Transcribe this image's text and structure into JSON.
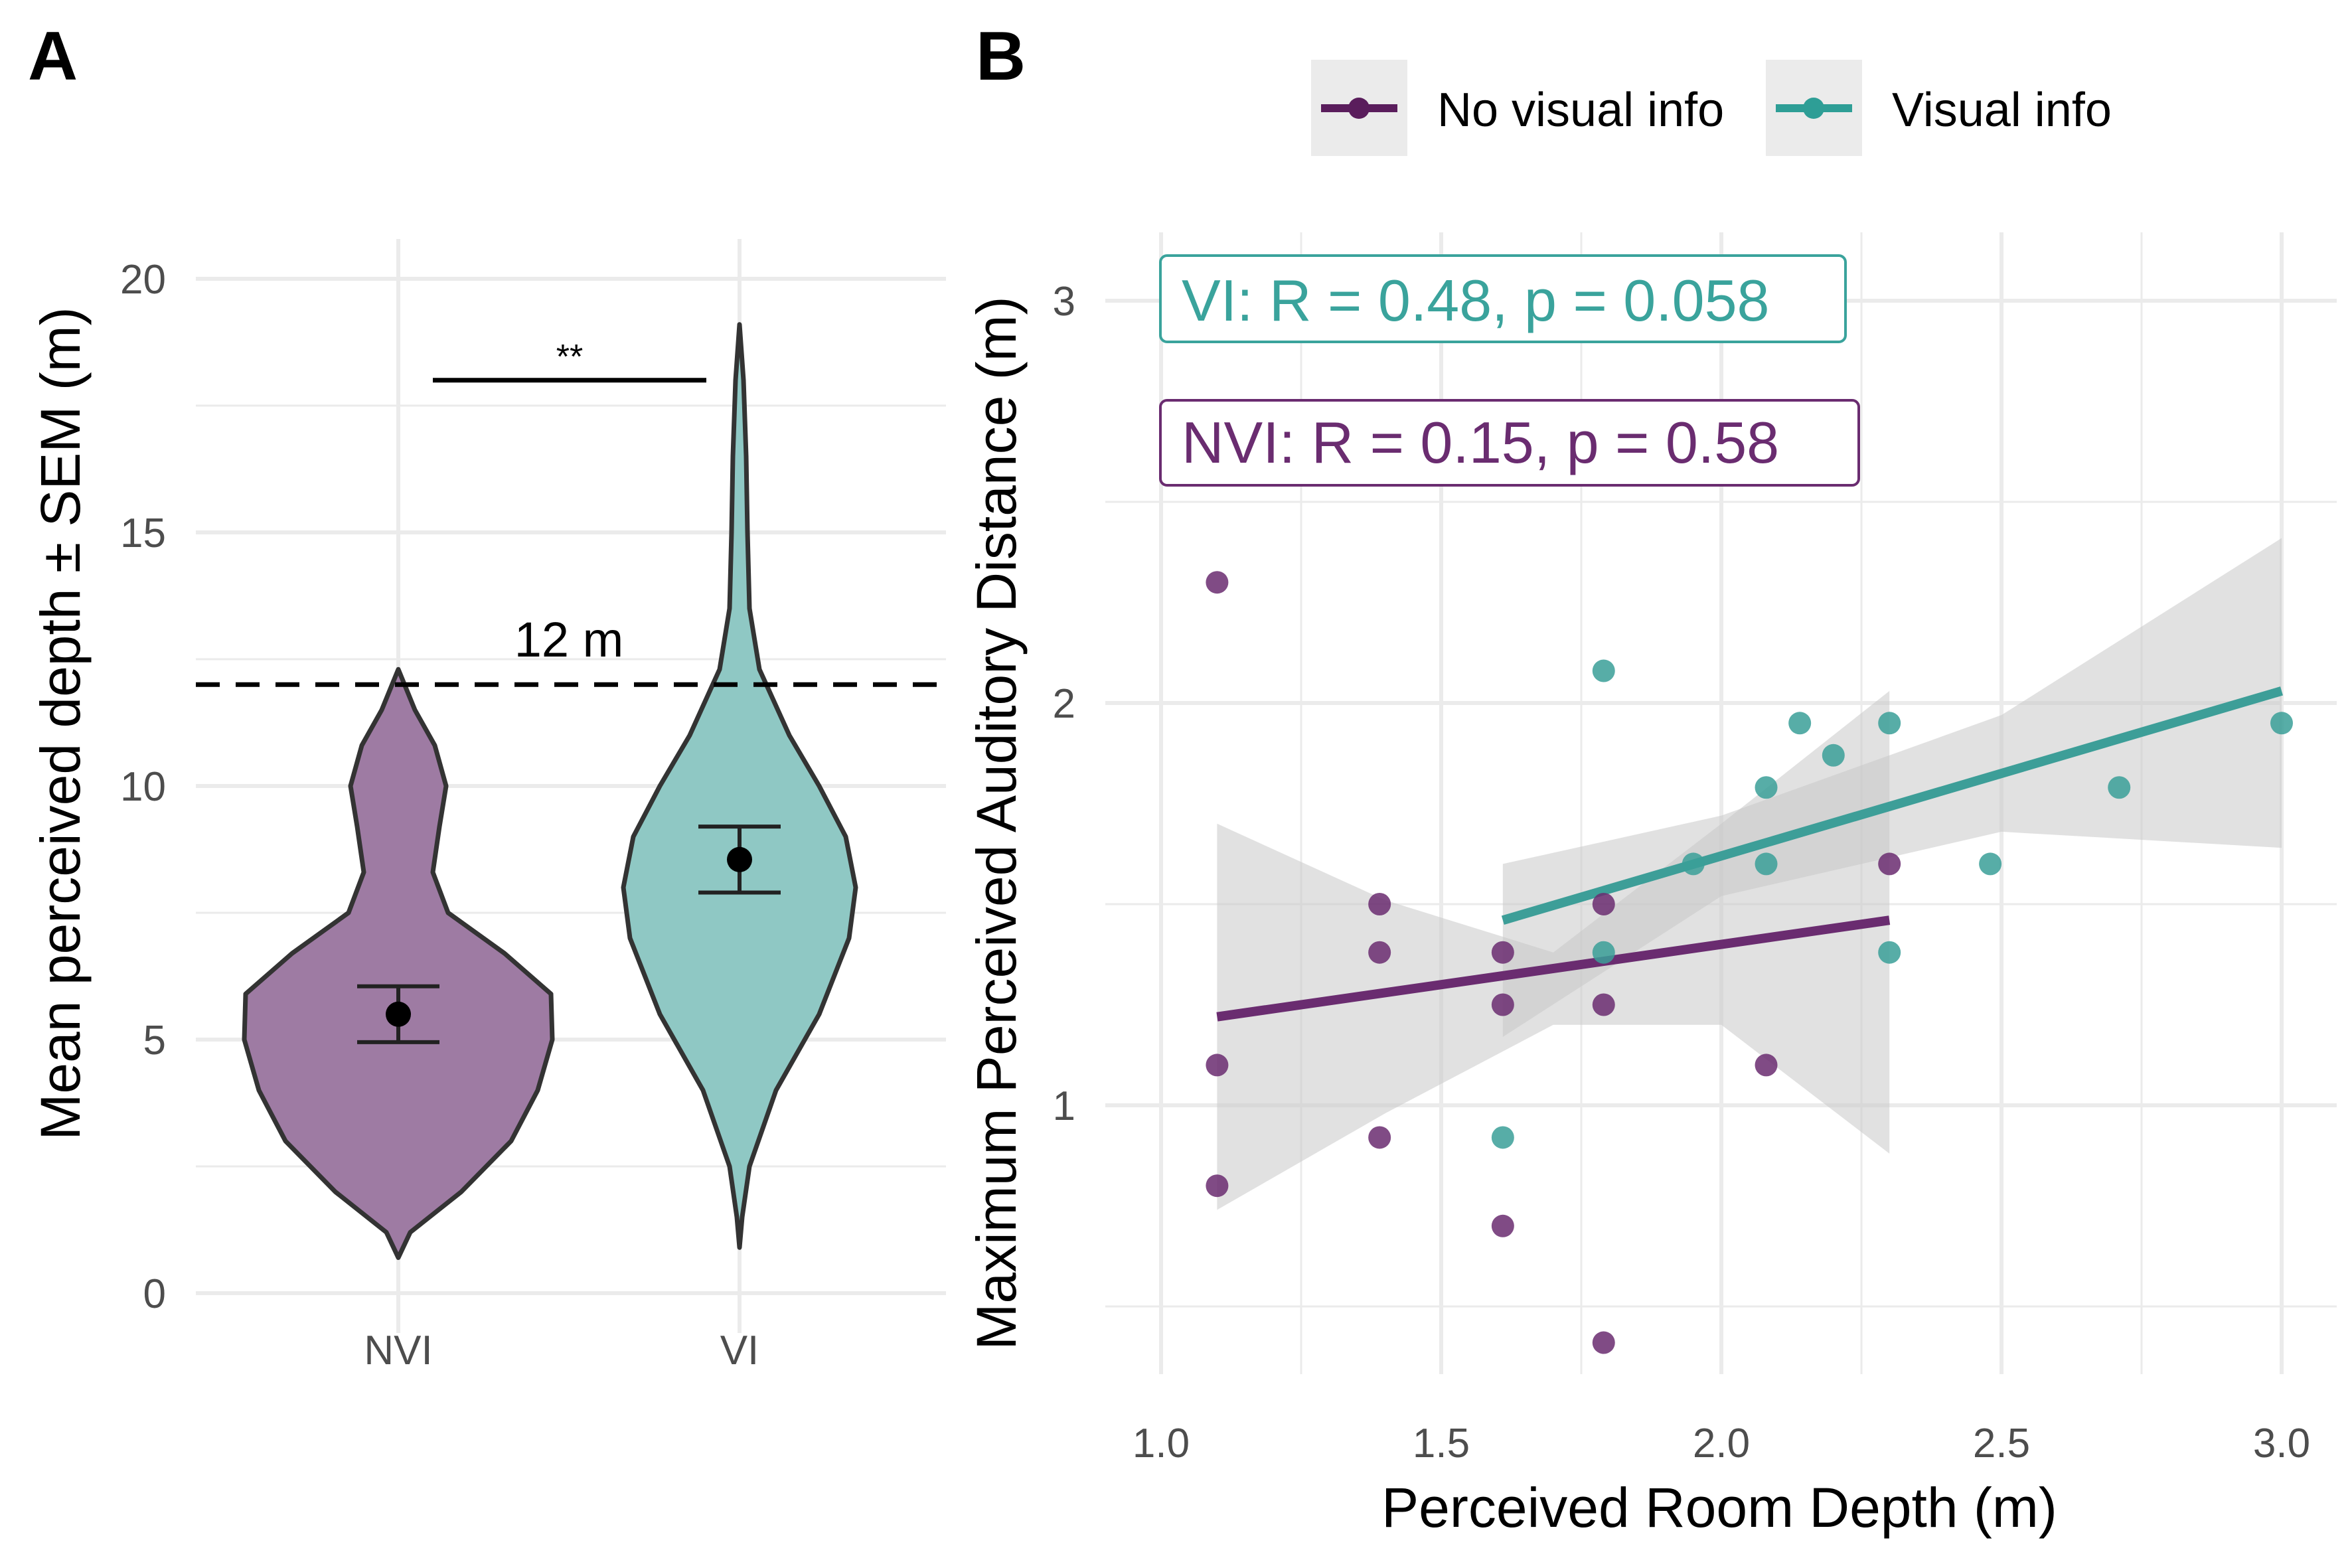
{
  "panels": {
    "a": "A",
    "b": "B"
  },
  "colors": {
    "nvi": "#5a1d5c",
    "nvi_fill": "#9e7ba3",
    "vi": "#1f9e96",
    "vi_fill": "#8fc8c4",
    "ribbon": "#c8c8c8",
    "grid": "#ebebeb"
  },
  "legend": {
    "items": [
      {
        "label": "No visual info",
        "color": "#5a1d5c"
      },
      {
        "label": "Visual info",
        "color": "#2e9e96"
      }
    ]
  },
  "chart_data": [
    {
      "type": "violin",
      "ylabel": "Mean perceived depth ± SEM (m)",
      "xlabel": "",
      "categories": [
        "NVI",
        "VI"
      ],
      "ylim": [
        0,
        20
      ],
      "yticks": [
        "0",
        "5",
        "10",
        "15",
        "20"
      ],
      "grid": true,
      "means": [
        5.5,
        8.55
      ],
      "sem_bounds": [
        [
          4.95,
          6.05
        ],
        [
          7.9,
          9.2
        ]
      ],
      "violin_range": [
        [
          0.7,
          12.3
        ],
        [
          0.9,
          19.1
        ]
      ],
      "reference_line": {
        "y": 12,
        "label": "12 m"
      },
      "significance": {
        "label": "**",
        "y": 18
      }
    },
    {
      "type": "scatter",
      "xlabel": "Perceived Room Depth (m)",
      "ylabel": "Maximum Perceived Auditory Distance (m)",
      "xlim": [
        0.9,
        3.1
      ],
      "ylim": [
        0.4,
        3.2
      ],
      "xticks": [
        "1.0",
        "1.5",
        "2.0",
        "2.5",
        "3.0"
      ],
      "yticks": [
        "1",
        "2",
        "3"
      ],
      "grid": true,
      "legend_position": "top",
      "annotations": [
        {
          "text": "VI: R = 0.48, p =  0.058",
          "series": "Visual info"
        },
        {
          "text": "NVI: R = 0.15, p =  0.58",
          "series": "No visual info"
        }
      ],
      "series": [
        {
          "name": "No visual info",
          "points": [
            [
              1.1,
              2.3
            ],
            [
              1.1,
              1.1
            ],
            [
              1.1,
              0.8
            ],
            [
              1.39,
              1.5
            ],
            [
              1.39,
              1.38
            ],
            [
              1.39,
              0.92
            ],
            [
              1.61,
              1.38
            ],
            [
              1.61,
              1.25
            ],
            [
              1.61,
              0.7
            ],
            [
              1.79,
              1.5
            ],
            [
              1.79,
              1.25
            ],
            [
              1.79,
              0.41
            ],
            [
              2.08,
              1.1
            ],
            [
              2.3,
              1.6
            ]
          ],
          "fit": {
            "x": [
              1.1,
              2.3
            ],
            "y": [
              1.22,
              1.46
            ]
          },
          "ci_upper": [
            1.7,
            1.51,
            1.38,
            1.7,
            2.03
          ],
          "ci_lower": [
            0.74,
            0.98,
            1.2,
            1.2,
            0.88
          ],
          "ci_x": [
            1.1,
            1.4,
            1.7,
            2.0,
            2.3
          ]
        },
        {
          "name": "Visual info",
          "points": [
            [
              1.61,
              0.92
            ],
            [
              1.79,
              2.08
            ],
            [
              1.79,
              1.38
            ],
            [
              1.95,
              1.6
            ],
            [
              2.08,
              1.79
            ],
            [
              2.08,
              1.6
            ],
            [
              2.14,
              1.95
            ],
            [
              2.2,
              1.87
            ],
            [
              2.3,
              1.95
            ],
            [
              2.3,
              1.38
            ],
            [
              2.48,
              1.6
            ],
            [
              2.71,
              1.79
            ],
            [
              3.0,
              1.95
            ]
          ],
          "fit": {
            "x": [
              1.61,
              3.0
            ],
            "y": [
              1.46,
              2.03
            ]
          },
          "ci_upper": [
            1.6,
            1.72,
            1.97,
            2.41
          ],
          "ci_lower": [
            1.17,
            1.52,
            1.68,
            1.64
          ],
          "ci_x": [
            1.61,
            2.0,
            2.5,
            3.0
          ]
        }
      ]
    }
  ]
}
